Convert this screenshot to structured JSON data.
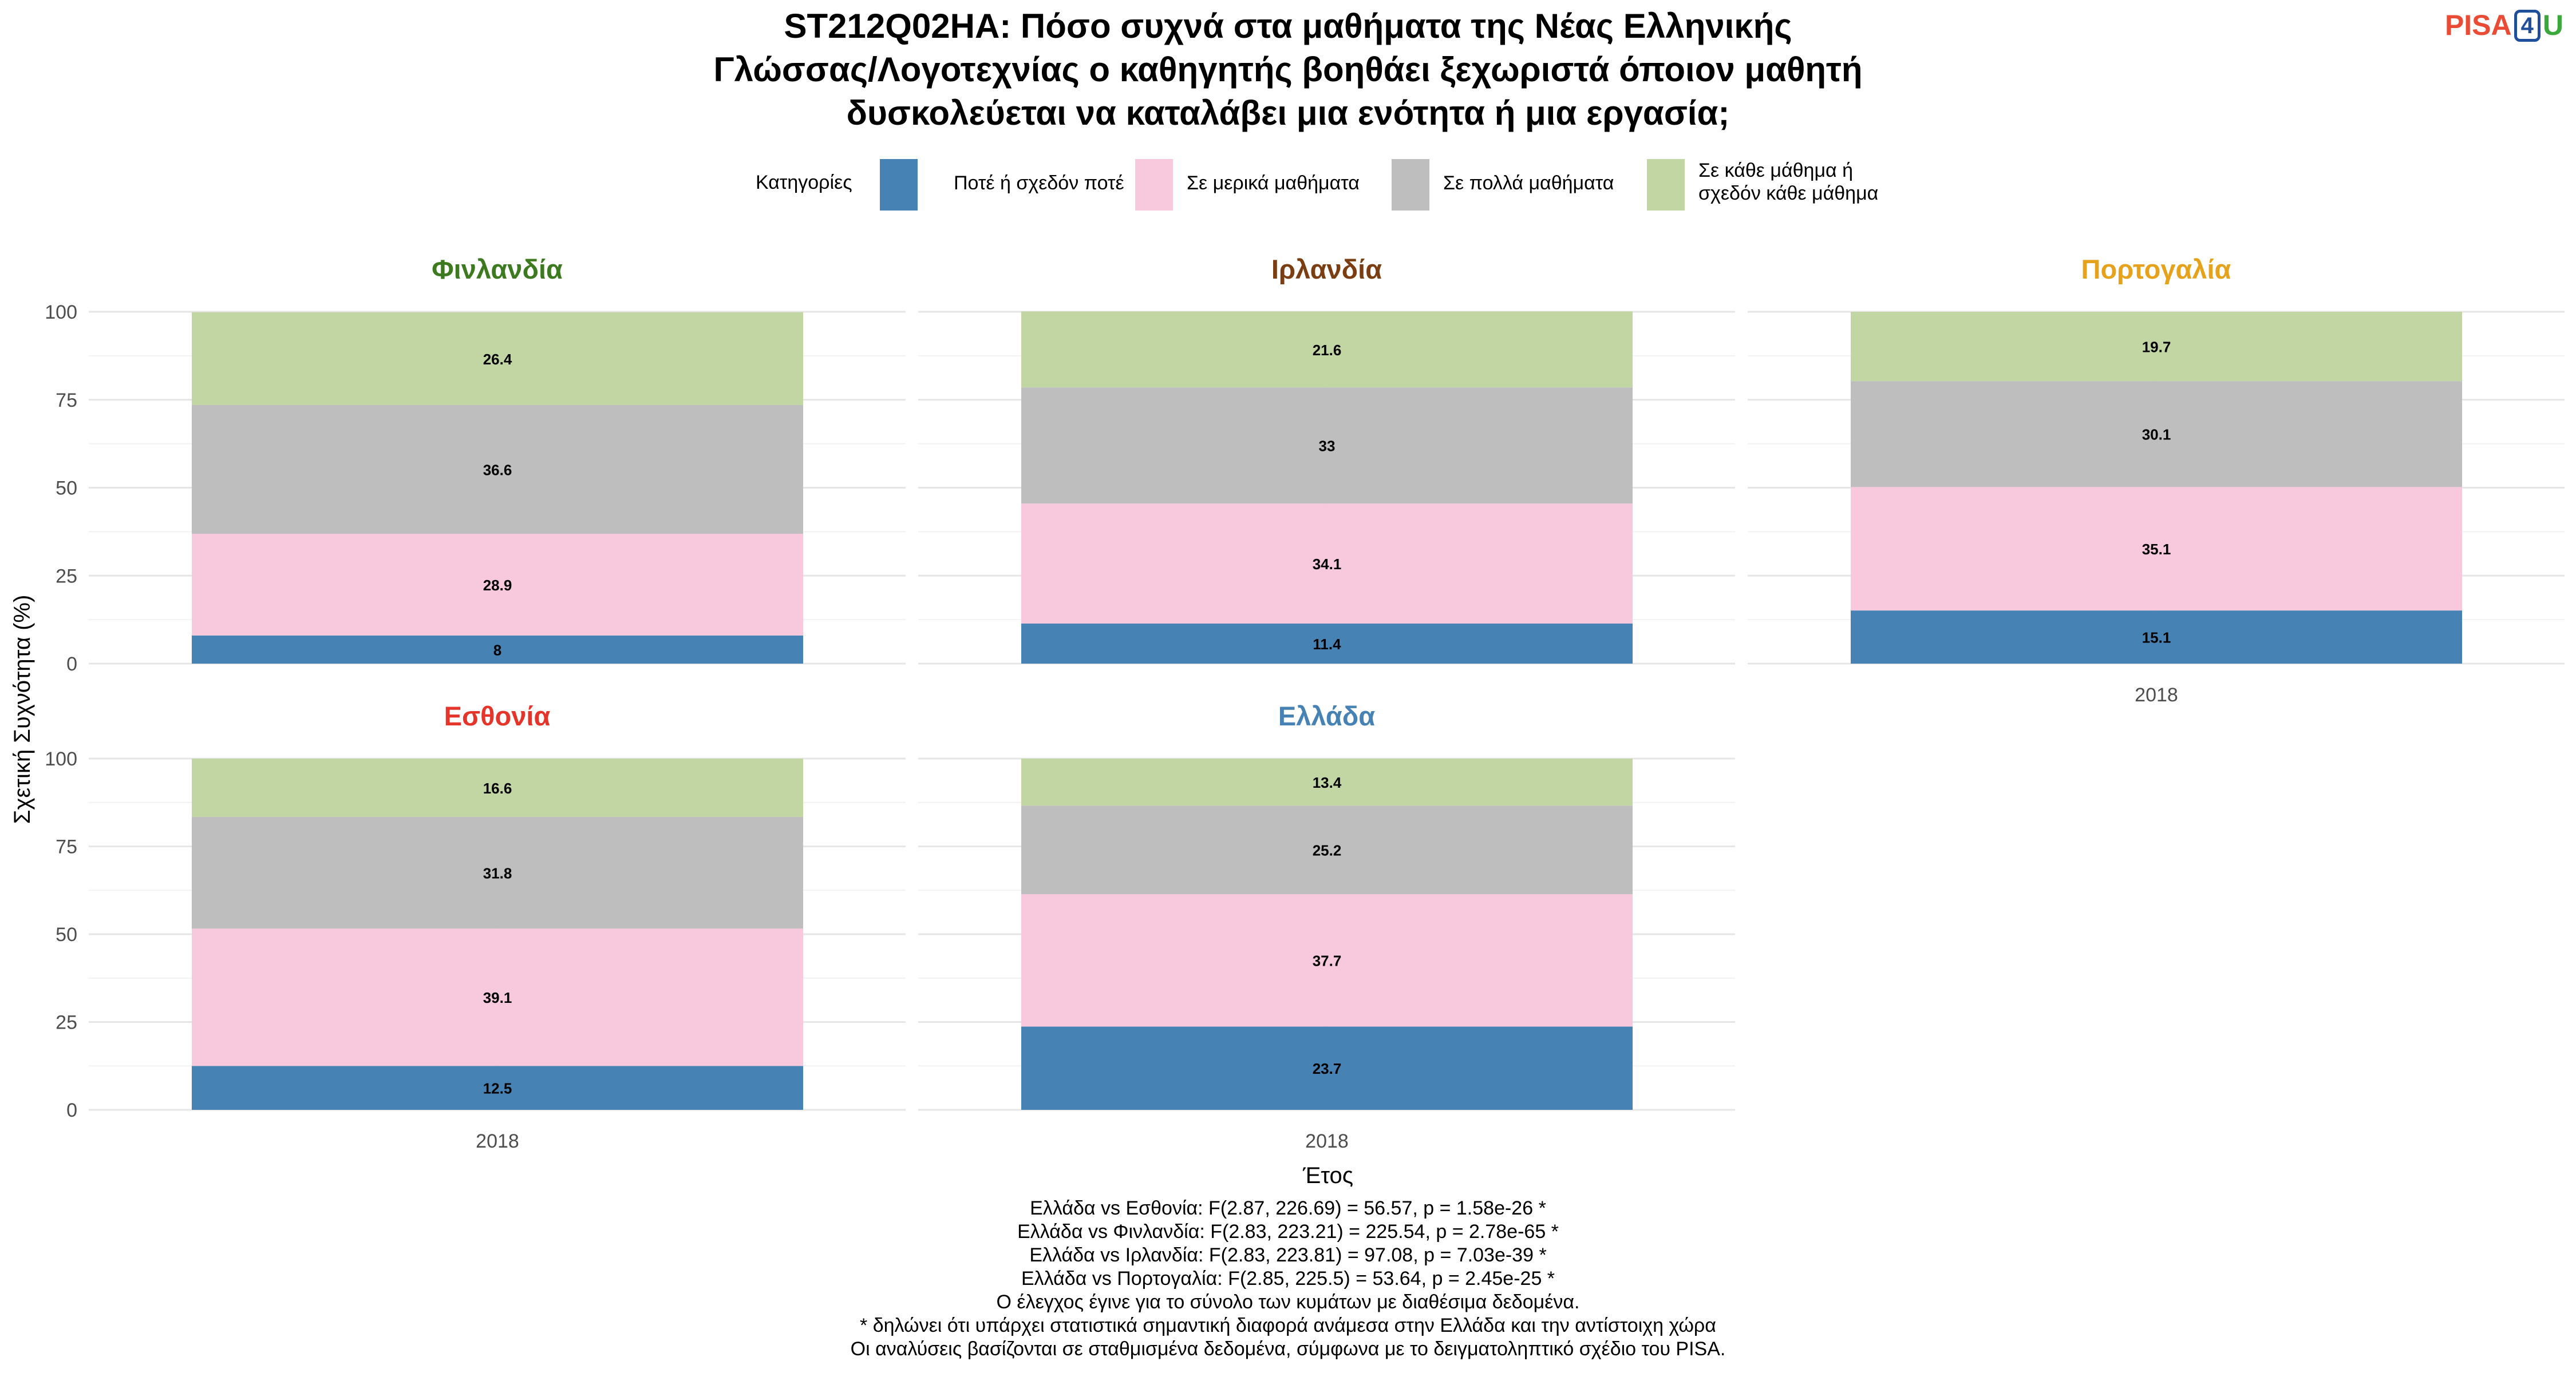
{
  "title_lines": [
    "ST212Q02HA: Πόσο συχνά στα μαθήματα της Νέας Ελληνικής",
    "Γλώσσας/Λογοτεχνίας ο καθηγητής βοηθάει ξεχωριστά όποιον μαθητή",
    "δυσκολεύεται να καταλάβει μια ενότητα ή μια εργασία;"
  ],
  "logo": {
    "pisa": "PISA",
    "four": "4",
    "u": "U"
  },
  "legend": {
    "title": "Κατηγορίες",
    "items": [
      {
        "label": "Ποτέ ή σχεδόν ποτέ",
        "color": "#4682b4"
      },
      {
        "label": "Σε μερικά μαθήματα",
        "color": "#f8c8dc"
      },
      {
        "label": "Σε πολλά μαθήματα",
        "color": "#bebebe"
      },
      {
        "label_lines": [
          "Σε κάθε μάθημα ή",
          "σχεδόν κάθε μάθημα"
        ],
        "color": "#c2d6a4"
      }
    ]
  },
  "chart_data": {
    "type": "bar",
    "stacked": true,
    "x_label": "Έτος",
    "y_label": "Σχετική Συχνότητα (%)",
    "ylim": [
      0,
      100
    ],
    "y_ticks": [
      0,
      25,
      50,
      75,
      100
    ],
    "categories": [
      "2018"
    ],
    "series_names": [
      "Ποτέ ή σχεδόν ποτέ",
      "Σε μερικά μαθήματα",
      "Σε πολλά μαθήματα",
      "Σε κάθε μάθημα ή σχεδόν κάθε μάθημα"
    ],
    "colors": [
      "#4682b4",
      "#f8c8dc",
      "#bebebe",
      "#c2d6a4"
    ],
    "panels": [
      {
        "country": "Φινλανδία",
        "color": "#3d7a1f",
        "year": "2018",
        "values": [
          8,
          28.9,
          36.6,
          26.4
        ],
        "labels": [
          "8",
          "28.9",
          "36.6",
          "26.4"
        ]
      },
      {
        "country": "Ιρλανδία",
        "color": "#7a3e12",
        "year": "2018",
        "values": [
          11.4,
          34.1,
          33,
          21.6
        ],
        "labels": [
          "11.4",
          "34.1",
          "33",
          "21.6"
        ]
      },
      {
        "country": "Πορτογαλία",
        "color": "#e6a21a",
        "year": "2018",
        "values": [
          15.1,
          35.1,
          30.1,
          19.7
        ],
        "labels": [
          "15.1",
          "35.1",
          "30.1",
          "19.7"
        ]
      },
      {
        "country": "Εσθονία",
        "color": "#e5352b",
        "year": "2018",
        "values": [
          12.5,
          39.1,
          31.8,
          16.6
        ],
        "labels": [
          "12.5",
          "39.1",
          "31.8",
          "16.6"
        ]
      },
      {
        "country": "Ελλάδα",
        "color": "#4682b4",
        "year": "2018",
        "values": [
          23.7,
          37.7,
          25.2,
          13.4
        ],
        "labels": [
          "23.7",
          "37.7",
          "25.2",
          "13.4"
        ]
      }
    ]
  },
  "footnotes": [
    "Ελλάδα vs Εσθονία: F(2.87, 226.69) = 56.57, p = 1.58e-26 *",
    "Ελλάδα vs Φινλανδία: F(2.83, 223.21) = 225.54, p = 2.78e-65 *",
    "Ελλάδα vs Ιρλανδία: F(2.83, 223.81) = 97.08, p = 7.03e-39 *",
    "Ελλάδα vs Πορτογαλία: F(2.85, 225.5) = 53.64, p = 2.45e-25 *",
    "Ο έλεγχος έγινε για το σύνολο των κυμάτων με διαθέσιμα δεδομένα.",
    "* δηλώνει ότι υπάρχει στατιστικά σημαντική διαφορά ανάμεσα στην Ελλάδα και την αντίστοιχη χώρα",
    "Οι αναλύσεις βασίζονται σε σταθμισμένα δεδομένα, σύμφωνα με το δειγματοληπτικό σχέδιο του PISA."
  ]
}
